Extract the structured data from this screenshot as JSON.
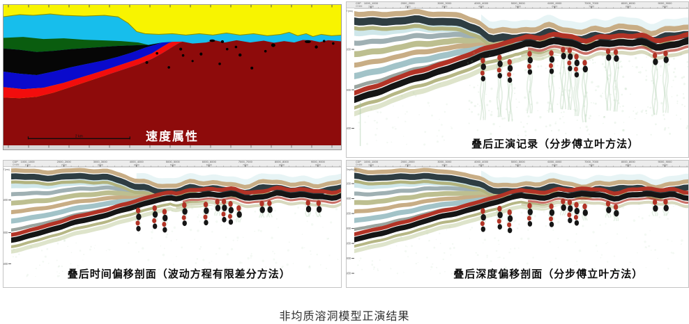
{
  "figure": {
    "caption": "非均质溶洞模型正演结果"
  },
  "panels": {
    "velocity": {
      "label": "速度属性",
      "scale_bar_label": "2 km",
      "layers": [
        {
          "name": "surface-layer",
          "color": "#F8F400"
        },
        {
          "name": "second-layer",
          "color": "#17BEEC"
        },
        {
          "name": "green-wedge",
          "color": "#0A5D0F"
        },
        {
          "name": "black-wedge",
          "color": "#060606"
        },
        {
          "name": "blue-wedge",
          "color": "#0A0ACC"
        },
        {
          "name": "red-marker-bed",
          "color": "#F20D0D"
        },
        {
          "name": "carbonate-body",
          "color": "#8E0B0B"
        }
      ],
      "cave_dots": [
        [
          0.425,
          0.41,
          2,
          2
        ],
        [
          0.455,
          0.345,
          1.8,
          1.8
        ],
        [
          0.49,
          0.445,
          1.8,
          1.8
        ],
        [
          0.525,
          0.315,
          2,
          2
        ],
        [
          0.532,
          0.36,
          1.8,
          1.8
        ],
        [
          0.585,
          0.35,
          2,
          2.2
        ],
        [
          0.618,
          0.255,
          4,
          1.8
        ],
        [
          0.648,
          0.262,
          2.2,
          2
        ],
        [
          0.662,
          0.315,
          1.8,
          1.8
        ],
        [
          0.688,
          0.3,
          1.8,
          1.8
        ],
        [
          0.7,
          0.357,
          2.2,
          2.2
        ],
        [
          0.735,
          0.45,
          2,
          2
        ],
        [
          0.775,
          0.33,
          1.8,
          1.8
        ],
        [
          0.798,
          0.287,
          3,
          2.6
        ],
        [
          0.9,
          0.262,
          4.5,
          2
        ],
        [
          0.925,
          0.3,
          2.2,
          2.2
        ],
        [
          0.948,
          0.258,
          1.8,
          1.8
        ],
        [
          0.975,
          0.275,
          1.8,
          1.8
        ],
        [
          0.56,
          0.4,
          1.6,
          1.6
        ],
        [
          0.64,
          0.42,
          1.8,
          1.8
        ]
      ]
    },
    "record": {
      "label": "叠后正演记录（分步傅立叶方法）",
      "corner_label": "T(ms)",
      "header_corner": "CDP",
      "y_ticks": [
        "500",
        "1000",
        "1500"
      ],
      "y_tick_pos": [
        0.277,
        0.55,
        0.81
      ],
      "x_ticks": [
        "1000",
        "2000",
        "3000",
        "4000",
        "5000",
        "6000",
        "7000",
        "8000",
        "9000"
      ],
      "tail": "long",
      "seed": 11
    },
    "time_migration": {
      "label": "叠后时间偏移剖面（波动方程有限差分方法）",
      "corner_label": "T(ms)",
      "header_corner": "CDP",
      "y_ticks": [
        "500",
        "1000",
        "1500"
      ],
      "y_tick_pos": [
        0.277,
        0.55,
        0.81
      ],
      "x_ticks": [
        "1000",
        "2000",
        "3000",
        "4000",
        "5000",
        "6000",
        "7000",
        "8000",
        "9000"
      ],
      "tail": "short",
      "seed": 23
    },
    "depth_migration": {
      "label": "叠后深度偏移剖面（分步傅立叶方法）",
      "corner_label": "Depth(m)",
      "header_corner": "CDP",
      "y_ticks": [
        "500",
        "1000",
        "1500",
        "2000",
        "2500",
        "3000",
        "3500"
      ],
      "y_tick_pos": [
        0.14,
        0.265,
        0.39,
        0.515,
        0.64,
        0.765,
        0.89
      ],
      "x_ticks": [
        "1000",
        "2000",
        "3000",
        "4000",
        "5000",
        "6000",
        "7000",
        "8000",
        "9000"
      ],
      "tail": "short",
      "seed": 37
    }
  },
  "seismic": {
    "palette": {
      "pale_cyan": "#d7ecee",
      "pale_blue": "#cfe7ea",
      "blue_gray": "#9fb0b3",
      "olive": "#bdbf90",
      "tan": "#c8ad85",
      "teal": "#a2c3c8",
      "gray": "#9aa49f",
      "dark": "#2e3d42",
      "red": "#b23326",
      "black": "#151515",
      "olive_dark": "#b2b37e",
      "fringe": "#dce3c8",
      "speckle": "#9cc49a"
    },
    "caves": [
      {
        "x": 0.385,
        "drop": 0.065,
        "tall": true
      },
      {
        "x": 0.435,
        "drop": 0.045,
        "tall": true
      },
      {
        "x": 0.465,
        "drop": 0.075,
        "tall": true
      },
      {
        "x": 0.525,
        "drop": 0.02,
        "tall": true
      },
      {
        "x": 0.59,
        "drop": 0.03,
        "tall": true
      },
      {
        "x": 0.625,
        "drop": 0.0,
        "tall": false
      },
      {
        "x": 0.645,
        "drop": 0.0,
        "tall": true
      },
      {
        "x": 0.665,
        "drop": 0.03,
        "tall": true
      },
      {
        "x": 0.69,
        "drop": 0.05,
        "tall": false
      },
      {
        "x": 0.76,
        "drop": 0.0,
        "tall": false
      },
      {
        "x": 0.783,
        "drop": 0.012,
        "tall": false
      },
      {
        "x": 0.9,
        "drop": 0.006,
        "tall": false
      },
      {
        "x": 0.932,
        "drop": 0.0,
        "tall": false
      }
    ]
  },
  "chart_data": [
    {
      "type": "area",
      "title": "速度属性",
      "description": "分层速度模型剖面：黄色表层、浅蓝色第二层、左侧深绿/黑/蓝/红倾斜楔形层、暗红色碳酸盐岩主体，主体内散布黑色溶洞点，左下角比例尺 2 km",
      "layers": [
        "黄色表层",
        "浅蓝色层",
        "深绿色楔形层",
        "黑色楔形层",
        "蓝色楔形层",
        "红色标志层",
        "暗红色碳酸盐岩体（含黑色溶洞）"
      ],
      "legend_position": "none",
      "grid": false
    },
    {
      "type": "heatmap",
      "title": "叠后正演记录（分步傅立叶方法）",
      "xlabel": "CDP",
      "ylabel": "T(ms)",
      "x_ticks": [
        1000,
        2000,
        3000,
        4000,
        5000,
        6000,
        7000,
        8000,
        9000
      ],
      "y_ticks": [
        500,
        1000,
        1500
      ],
      "ylim": [
        0,
        1800
      ],
      "features": "左侧缓倾反射层组，中部台阶，右侧水平强反射（红-黑），强反射下方悬挂溶洞绕射异常及长绕射尾"
    },
    {
      "type": "heatmap",
      "title": "叠后时间偏移剖面（波动方程有限差分方法）",
      "xlabel": "CDP",
      "ylabel": "T(ms)",
      "x_ticks": [
        1000,
        2000,
        3000,
        4000,
        5000,
        6000,
        7000,
        8000,
        9000
      ],
      "y_ticks": [
        500,
        1000,
        1500
      ],
      "ylim": [
        0,
        1800
      ],
      "features": "偏移后绕射收敛，溶洞呈短串珠状强反射"
    },
    {
      "type": "heatmap",
      "title": "叠后深度偏移剖面（分步傅立叶方法）",
      "xlabel": "CDP",
      "ylabel": "Depth(m)",
      "x_ticks": [
        1000,
        2000,
        3000,
        4000,
        5000,
        6000,
        7000,
        8000,
        9000
      ],
      "y_ticks": [
        500,
        1000,
        1500,
        2000,
        2500,
        3000,
        3500
      ],
      "ylim": [
        0,
        3800
      ],
      "features": "深度域剖面，溶洞呈串珠状强反射"
    }
  ]
}
